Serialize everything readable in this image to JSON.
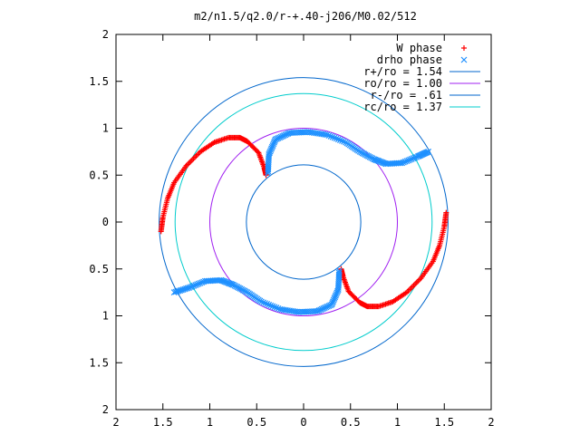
{
  "chart_data": {
    "type": "scatter",
    "title": "m2/n1.5/q2.0/r-+.40-j206/M0.02/512",
    "xlabel": "",
    "ylabel": "",
    "xlim": [
      -2,
      2
    ],
    "ylim": [
      -2,
      2
    ],
    "x_ticks": [
      -2,
      -1.5,
      -1,
      -0.5,
      0,
      0.5,
      1,
      1.5,
      2
    ],
    "y_ticks": [
      -2,
      -1.5,
      -1,
      -0.5,
      0,
      0.5,
      1,
      1.5,
      2
    ],
    "x_tick_labels": [
      "2",
      "1.5",
      "1",
      "0.5",
      "0",
      "0.5",
      "1",
      "1.5",
      "2"
    ],
    "y_tick_labels": [
      "2",
      "1.5",
      "1",
      "0.5",
      "0",
      "0.5",
      "1",
      "1.5",
      "2"
    ],
    "grid": false,
    "legend_position": "top-right",
    "series": [
      {
        "name": "W phase",
        "marker": "plus",
        "color": "#ff0000",
        "arms": [
          [
            [
              -1.52,
              -0.1
            ],
            [
              -1.5,
              0.05
            ],
            [
              -1.45,
              0.25
            ],
            [
              -1.38,
              0.42
            ],
            [
              -1.25,
              0.6
            ],
            [
              -1.1,
              0.75
            ],
            [
              -0.95,
              0.85
            ],
            [
              -0.8,
              0.9
            ],
            [
              -0.68,
              0.9
            ],
            [
              -0.6,
              0.86
            ],
            [
              -0.48,
              0.74
            ],
            [
              -0.42,
              0.58
            ],
            [
              -0.4,
              0.5
            ]
          ],
          [
            [
              1.52,
              0.1
            ],
            [
              1.5,
              -0.05
            ],
            [
              1.45,
              -0.25
            ],
            [
              1.38,
              -0.42
            ],
            [
              1.25,
              -0.6
            ],
            [
              1.1,
              -0.75
            ],
            [
              0.95,
              -0.85
            ],
            [
              0.8,
              -0.9
            ],
            [
              0.68,
              -0.9
            ],
            [
              0.6,
              -0.86
            ],
            [
              0.48,
              -0.74
            ],
            [
              0.42,
              -0.58
            ],
            [
              0.4,
              -0.5
            ]
          ]
        ]
      },
      {
        "name": "drho phase",
        "marker": "cross",
        "color": "#1e90ff",
        "arms": [
          [
            [
              -0.38,
              0.52
            ],
            [
              -0.37,
              0.72
            ],
            [
              -0.3,
              0.88
            ],
            [
              -0.15,
              0.95
            ],
            [
              0.05,
              0.96
            ],
            [
              0.25,
              0.93
            ],
            [
              0.45,
              0.85
            ],
            [
              0.6,
              0.75
            ],
            [
              0.75,
              0.67
            ],
            [
              0.88,
              0.62
            ],
            [
              1.05,
              0.63
            ],
            [
              1.22,
              0.7
            ],
            [
              1.33,
              0.75
            ]
          ],
          [
            [
              0.38,
              -0.52
            ],
            [
              0.37,
              -0.72
            ],
            [
              0.3,
              -0.88
            ],
            [
              0.15,
              -0.95
            ],
            [
              -0.05,
              -0.96
            ],
            [
              -0.25,
              -0.93
            ],
            [
              -0.45,
              -0.85
            ],
            [
              -0.6,
              -0.75
            ],
            [
              -0.75,
              -0.67
            ],
            [
              -0.88,
              -0.62
            ],
            [
              -1.05,
              -0.63
            ],
            [
              -1.22,
              -0.7
            ],
            [
              -1.38,
              -0.75
            ]
          ]
        ]
      }
    ],
    "circles": [
      {
        "name": "r+/ro = 1.54",
        "radius": 1.54,
        "color": "#0066cc"
      },
      {
        "name": "ro/ro = 1.00",
        "radius": 1.0,
        "color": "#a020f0"
      },
      {
        "name": "r-/ro = .61",
        "radius": 0.61,
        "color": "#0066cc"
      },
      {
        "name": "rc/ro = 1.37",
        "radius": 1.37,
        "color": "#00cccc"
      }
    ]
  }
}
